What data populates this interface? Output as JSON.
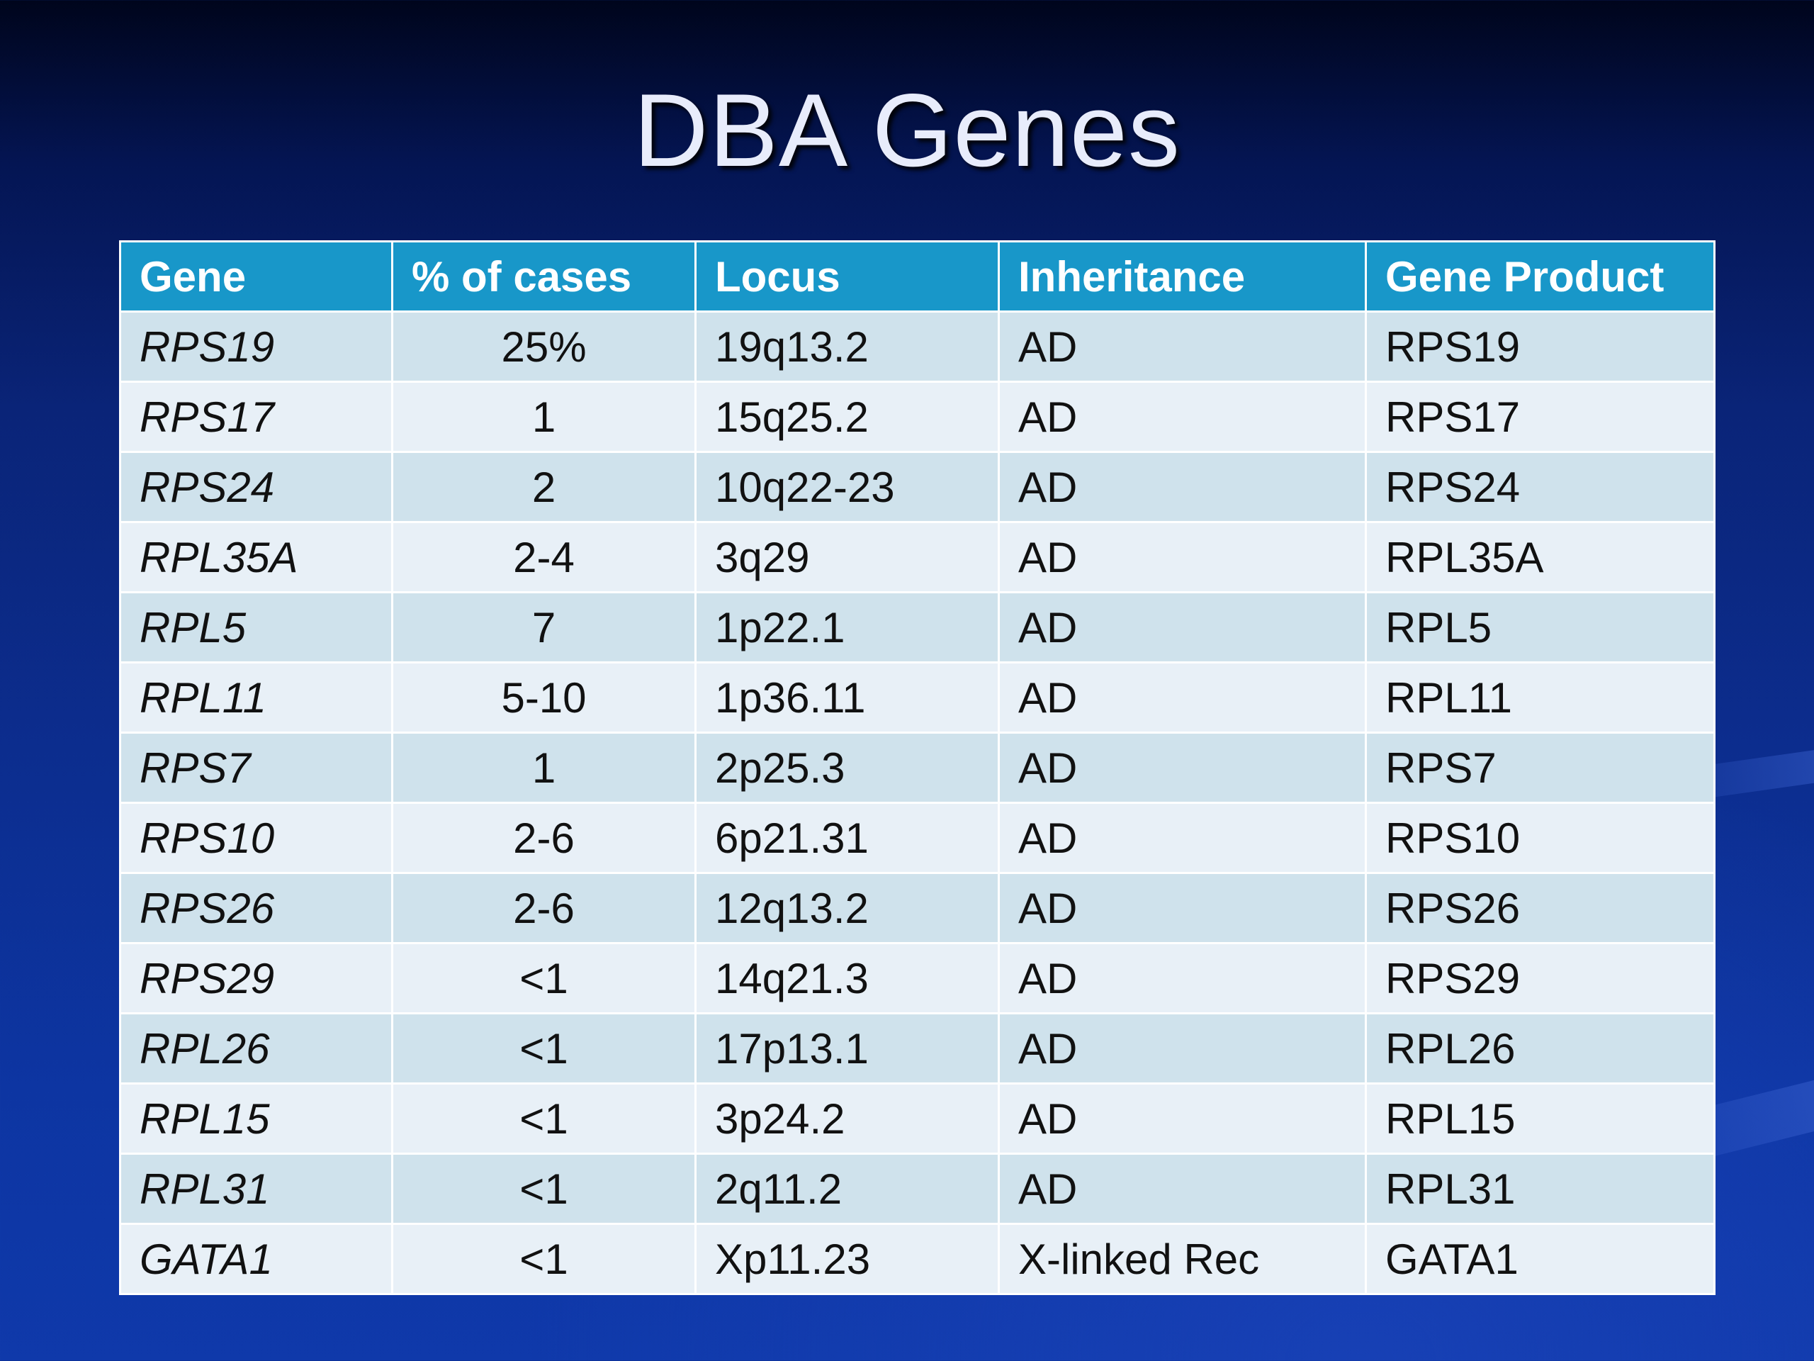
{
  "title": "DBA Genes",
  "table": {
    "headers": [
      "Gene",
      "% of cases",
      "Locus",
      "Inheritance",
      "Gene Product"
    ],
    "rows": [
      {
        "gene": "RPS19",
        "cases": "25%",
        "locus": "19q13.2",
        "inheritance": "AD",
        "product": "RPS19"
      },
      {
        "gene": "RPS17",
        "cases": "1",
        "locus": "15q25.2",
        "inheritance": "AD",
        "product": "RPS17"
      },
      {
        "gene": "RPS24",
        "cases": "2",
        "locus": "10q22-23",
        "inheritance": "AD",
        "product": "RPS24"
      },
      {
        "gene": "RPL35A",
        "cases": "2-4",
        "locus": "3q29",
        "inheritance": "AD",
        "product": "RPL35A"
      },
      {
        "gene": "RPL5",
        "cases": "7",
        "locus": "1p22.1",
        "inheritance": "AD",
        "product": "RPL5"
      },
      {
        "gene": "RPL11",
        "cases": "5-10",
        "locus": "1p36.11",
        "inheritance": "AD",
        "product": "RPL11"
      },
      {
        "gene": "RPS7",
        "cases": "1",
        "locus": "2p25.3",
        "inheritance": "AD",
        "product": "RPS7"
      },
      {
        "gene": "RPS10",
        "cases": "2-6",
        "locus": "6p21.31",
        "inheritance": "AD",
        "product": "RPS10"
      },
      {
        "gene": "RPS26",
        "cases": "2-6",
        "locus": "12q13.2",
        "inheritance": "AD",
        "product": "RPS26"
      },
      {
        "gene": "RPS29",
        "cases": "<1",
        "locus": "14q21.3",
        "inheritance": "AD",
        "product": "RPS29"
      },
      {
        "gene": "RPL26",
        "cases": "<1",
        "locus": "17p13.1",
        "inheritance": "AD",
        "product": "RPL26"
      },
      {
        "gene": "RPL15",
        "cases": "<1",
        "locus": "3p24.2",
        "inheritance": "AD",
        "product": "RPL15"
      },
      {
        "gene": "RPL31",
        "cases": "<1",
        "locus": "2q11.2",
        "inheritance": "AD",
        "product": "RPL31"
      },
      {
        "gene": "GATA1",
        "cases": "<1",
        "locus": "Xp11.23",
        "inheritance": "X-linked Rec",
        "product": "GATA1"
      }
    ]
  },
  "colors": {
    "header_bg": "#1897c9",
    "row_dark": "#cfe2ec",
    "row_light": "#e8f0f7",
    "background": "#0c2d8e"
  }
}
